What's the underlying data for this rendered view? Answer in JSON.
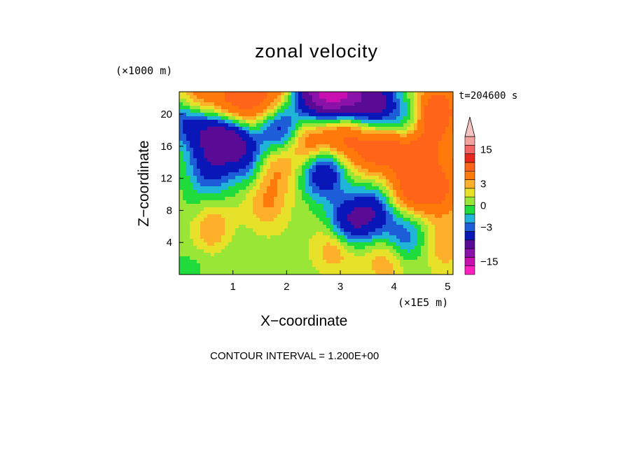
{
  "chart_data": {
    "type": "heatmap",
    "title": "zonal velocity",
    "xlabel": "X−coordinate",
    "ylabel": "Z−coordinate",
    "x_units": "(×1E5 m)",
    "y_units": "(×1000 m)",
    "time_label": "t=204600 s",
    "contour_interval_text": "CONTOUR INTERVAL = 1.200E+00",
    "xlim": [
      0,
      5.1
    ],
    "ylim": [
      0,
      22.8
    ],
    "x_ticks": [
      {
        "value": 1,
        "label": "1"
      },
      {
        "value": 2,
        "label": "2"
      },
      {
        "value": 3,
        "label": "3"
      },
      {
        "value": 4,
        "label": "4"
      },
      {
        "value": 5,
        "label": "5"
      }
    ],
    "y_ticks": [
      {
        "value": 4,
        "label": "4"
      },
      {
        "value": 8,
        "label": "8"
      },
      {
        "value": 12,
        "label": "12"
      },
      {
        "value": 16,
        "label": "16"
      },
      {
        "value": 20,
        "label": "20"
      }
    ],
    "colorbar": {
      "levels": [
        -20.4,
        -16.8,
        -13.2,
        -9.6,
        -6,
        -3.6,
        -2.4,
        -1.2,
        0,
        1.2,
        2.4,
        3.6,
        6,
        9.6,
        13.2,
        16.8,
        20.4
      ],
      "colors": [
        "#ff1fbf",
        "#c80fb0",
        "#8a12a8",
        "#5a0b96",
        "#0a17b8",
        "#1d5dd8",
        "#1fb4d8",
        "#1fdc3c",
        "#9ae637",
        "#e8e12a",
        "#ffb02a",
        "#ff7a0a",
        "#ff6418",
        "#e8281c",
        "#f06464",
        "#f2a3a0",
        "#f5c4c0"
      ],
      "tick_labels": [
        {
          "value": 15,
          "label": "15"
        },
        {
          "value": 3,
          "label": "3"
        },
        {
          "value": 0,
          "label": "0"
        },
        {
          "value": -3,
          "label": "−3"
        },
        {
          "value": -15,
          "label": "−15"
        }
      ]
    },
    "field_features": [
      {
        "x": 0.7,
        "z": 17.5,
        "value": -6.5
      },
      {
        "x": 1.1,
        "z": 17.0,
        "value": -6.2
      },
      {
        "x": 0.15,
        "z": 19.5,
        "value": -5.5
      },
      {
        "x": 0.6,
        "z": 12.5,
        "value": -2.8
      },
      {
        "x": 1.3,
        "z": 13.8,
        "value": -3.0
      },
      {
        "x": 0.5,
        "z": 14.5,
        "value": -2.4
      },
      {
        "x": 1.85,
        "z": 18.5,
        "value": -5.8
      },
      {
        "x": 2.65,
        "z": 13.0,
        "value": -7.0
      },
      {
        "x": 3.1,
        "z": 6.5,
        "value": -6.5
      },
      {
        "x": 3.55,
        "z": 8.0,
        "value": -5.5
      },
      {
        "x": 2.55,
        "z": 22.5,
        "value": -10.0
      },
      {
        "x": 3.0,
        "z": 22.5,
        "value": -12.0
      },
      {
        "x": 3.6,
        "z": 21.5,
        "value": -8.0
      },
      {
        "x": 4.2,
        "z": 18.5,
        "value": -5.0
      },
      {
        "x": 4.15,
        "z": 5.0,
        "value": -4.0
      },
      {
        "x": 0.3,
        "z": 22.0,
        "value": 5.0
      },
      {
        "x": 0.9,
        "z": 22.0,
        "value": 4.5
      },
      {
        "x": 1.65,
        "z": 22.5,
        "value": 5.5
      },
      {
        "x": 1.2,
        "z": 20.0,
        "value": 4.5
      },
      {
        "x": 0.6,
        "z": 6.0,
        "value": 3.5
      },
      {
        "x": 1.6,
        "z": 9.0,
        "value": 3.0
      },
      {
        "x": 1.75,
        "z": 13.5,
        "value": 3.5
      },
      {
        "x": 2.4,
        "z": 16.5,
        "value": 5.0
      },
      {
        "x": 3.0,
        "z": 17.5,
        "value": 5.5
      },
      {
        "x": 3.5,
        "z": 15.5,
        "value": 5.0
      },
      {
        "x": 4.0,
        "z": 16.0,
        "value": 6.5
      },
      {
        "x": 4.5,
        "z": 16.5,
        "value": 5.5
      },
      {
        "x": 4.75,
        "z": 20.5,
        "value": 8.0
      },
      {
        "x": 4.3,
        "z": 11.0,
        "value": 7.0
      },
      {
        "x": 4.8,
        "z": 10.5,
        "value": 5.0
      },
      {
        "x": 2.9,
        "z": 4.0,
        "value": 4.0
      },
      {
        "x": 3.8,
        "z": 2.0,
        "value": 3.0
      },
      {
        "x": 4.9,
        "z": 4.0,
        "value": 3.0
      },
      {
        "x": 0.2,
        "z": 1.5,
        "value": -1.0
      },
      {
        "x": 1.0,
        "z": 3.5,
        "value": -0.8
      },
      {
        "x": 0.3,
        "z": 8.0,
        "value": -0.8
      },
      {
        "x": 1.7,
        "z": 2.5,
        "value": 0.2
      },
      {
        "x": 5.0,
        "z": 14.0,
        "value": 2.0
      }
    ],
    "field_background_value": 0.6
  }
}
